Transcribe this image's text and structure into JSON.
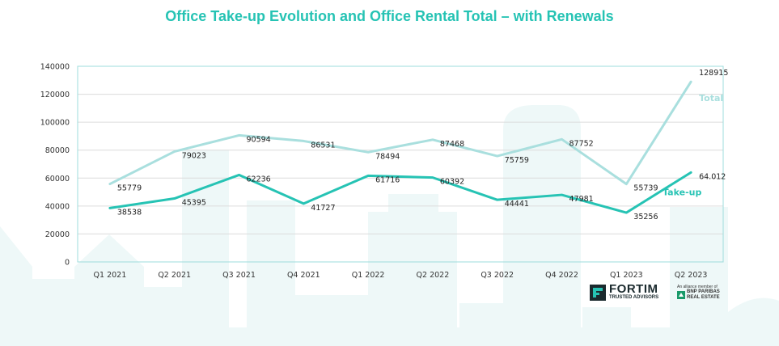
{
  "chart_data": {
    "type": "line",
    "title": "Office Take-up Evolution and Office Rental Total – with Renewals",
    "categories": [
      "Q1 2021",
      "Q2 2021",
      "Q3 2021",
      "Q4 2021",
      "Q1 2022",
      "Q2 2022",
      "Q3 2022",
      "Q4 2022",
      "Q1 2023",
      "Q2 2023"
    ],
    "series": [
      {
        "name": "Total",
        "color": "#a9dfde",
        "values": [
          55779,
          79023,
          90594,
          86531,
          78494,
          87468,
          75759,
          87752,
          55739,
          128915
        ],
        "labels": [
          "55779",
          "79023",
          "90594",
          "86531",
          "78494",
          "87468",
          "75759",
          "87752",
          "55739",
          "128915"
        ]
      },
      {
        "name": "Take-up",
        "color": "#26c3b4",
        "values": [
          38538,
          45395,
          62236,
          41727,
          61716,
          60392,
          44441,
          47981,
          35256,
          64012
        ],
        "labels": [
          "38538",
          "45395",
          "62236",
          "41727",
          "61716",
          "60392",
          "44441",
          "47981",
          "35256",
          "64.012"
        ]
      }
    ],
    "ylim": [
      0,
      140000
    ],
    "yticks": [
      "0",
      "20000",
      "40000",
      "60000",
      "80000",
      "100000",
      "120000",
      "140000"
    ],
    "grid": true,
    "xlabel": "",
    "ylabel": ""
  },
  "logos": {
    "fortim_name": "FORTIM",
    "fortim_tagline": "TRUSTED ADVISORS",
    "bnp_alliance": "An alliance member of",
    "bnp_line1": "BNP PARIBAS",
    "bnp_line2": "REAL ESTATE"
  }
}
